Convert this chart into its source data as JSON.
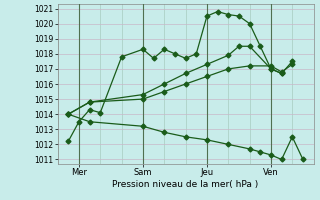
{
  "xlabel": "Pression niveau de la mer( hPa )",
  "bg_color": "#c8ecea",
  "grid_color_h": "#d8e8d8",
  "grid_color_v": "#b8d8c8",
  "vline_color": "#507050",
  "line_color": "#1a5c1a",
  "ylim": [
    1011,
    1021
  ],
  "yticks": [
    1011,
    1012,
    1013,
    1014,
    1015,
    1016,
    1017,
    1018,
    1019,
    1020,
    1021
  ],
  "xlim": [
    0,
    12
  ],
  "xtick_positions": [
    1,
    4,
    7,
    10
  ],
  "xtick_labels": [
    "Mer",
    "Sam",
    "Jeu",
    "Ven"
  ],
  "vlines": [
    1,
    4,
    7,
    10
  ],
  "line1_x": [
    0.5,
    1.0,
    1.5,
    2.0,
    3.0,
    4.0,
    4.5,
    5.0,
    5.5,
    6.0,
    6.5,
    7.0,
    7.5,
    8.0,
    8.5,
    9.0,
    9.5,
    10.0,
    10.5
  ],
  "line1_y": [
    1012.2,
    1013.5,
    1014.3,
    1014.1,
    1017.8,
    1018.3,
    1017.7,
    1018.3,
    1018.0,
    1017.7,
    1018.0,
    1020.5,
    1020.8,
    1020.6,
    1020.5,
    1020.0,
    1018.5,
    1017.0,
    1016.7
  ],
  "line2_x": [
    0.5,
    1.5,
    4.0,
    5.0,
    6.0,
    7.0,
    8.0,
    8.5,
    9.0,
    10.0,
    10.5,
    11.0
  ],
  "line2_y": [
    1014.0,
    1014.8,
    1015.3,
    1016.0,
    1016.7,
    1017.3,
    1017.9,
    1018.5,
    1018.5,
    1017.0,
    1016.7,
    1017.5
  ],
  "line3_x": [
    0.5,
    1.5,
    4.0,
    5.0,
    6.0,
    7.0,
    8.0,
    9.0,
    10.0,
    10.5,
    11.0
  ],
  "line3_y": [
    1014.0,
    1014.8,
    1015.0,
    1015.5,
    1016.0,
    1016.5,
    1017.0,
    1017.2,
    1017.2,
    1016.8,
    1017.3
  ],
  "line4_x": [
    0.5,
    1.5,
    4.0,
    5.0,
    6.0,
    7.0,
    8.0,
    9.0,
    9.5,
    10.0,
    10.5,
    11.0,
    11.5
  ],
  "line4_y": [
    1014.0,
    1013.5,
    1013.2,
    1012.8,
    1012.5,
    1012.3,
    1012.0,
    1011.7,
    1011.5,
    1011.3,
    1011.0,
    1012.5,
    1011.0
  ]
}
